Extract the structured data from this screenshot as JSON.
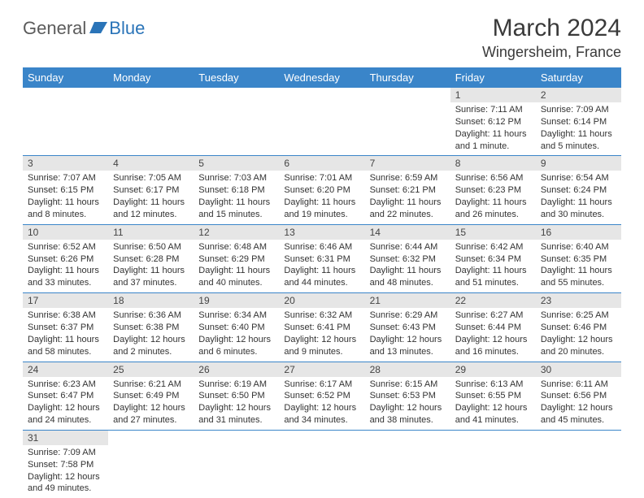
{
  "brand": {
    "text1": "General",
    "text2": "Blue"
  },
  "title": "March 2024",
  "location": "Wingersheim, France",
  "colors": {
    "header_bg": "#3a85c9",
    "header_fg": "#ffffff",
    "daynum_bg": "#e6e6e6",
    "row_divider": "#3a85c9",
    "brand_gray": "#5b5b5b",
    "brand_blue": "#2a74b8"
  },
  "fonts": {
    "title_size": 30,
    "location_size": 18,
    "dayheader_size": 13,
    "daynum_size": 12,
    "body_size": 11
  },
  "day_headers": [
    "Sunday",
    "Monday",
    "Tuesday",
    "Wednesday",
    "Thursday",
    "Friday",
    "Saturday"
  ],
  "weeks": [
    [
      {
        "n": "",
        "sunrise": "",
        "sunset": "",
        "daylight": ""
      },
      {
        "n": "",
        "sunrise": "",
        "sunset": "",
        "daylight": ""
      },
      {
        "n": "",
        "sunrise": "",
        "sunset": "",
        "daylight": ""
      },
      {
        "n": "",
        "sunrise": "",
        "sunset": "",
        "daylight": ""
      },
      {
        "n": "",
        "sunrise": "",
        "sunset": "",
        "daylight": ""
      },
      {
        "n": "1",
        "sunrise": "Sunrise: 7:11 AM",
        "sunset": "Sunset: 6:12 PM",
        "daylight": "Daylight: 11 hours and 1 minute."
      },
      {
        "n": "2",
        "sunrise": "Sunrise: 7:09 AM",
        "sunset": "Sunset: 6:14 PM",
        "daylight": "Daylight: 11 hours and 5 minutes."
      }
    ],
    [
      {
        "n": "3",
        "sunrise": "Sunrise: 7:07 AM",
        "sunset": "Sunset: 6:15 PM",
        "daylight": "Daylight: 11 hours and 8 minutes."
      },
      {
        "n": "4",
        "sunrise": "Sunrise: 7:05 AM",
        "sunset": "Sunset: 6:17 PM",
        "daylight": "Daylight: 11 hours and 12 minutes."
      },
      {
        "n": "5",
        "sunrise": "Sunrise: 7:03 AM",
        "sunset": "Sunset: 6:18 PM",
        "daylight": "Daylight: 11 hours and 15 minutes."
      },
      {
        "n": "6",
        "sunrise": "Sunrise: 7:01 AM",
        "sunset": "Sunset: 6:20 PM",
        "daylight": "Daylight: 11 hours and 19 minutes."
      },
      {
        "n": "7",
        "sunrise": "Sunrise: 6:59 AM",
        "sunset": "Sunset: 6:21 PM",
        "daylight": "Daylight: 11 hours and 22 minutes."
      },
      {
        "n": "8",
        "sunrise": "Sunrise: 6:56 AM",
        "sunset": "Sunset: 6:23 PM",
        "daylight": "Daylight: 11 hours and 26 minutes."
      },
      {
        "n": "9",
        "sunrise": "Sunrise: 6:54 AM",
        "sunset": "Sunset: 6:24 PM",
        "daylight": "Daylight: 11 hours and 30 minutes."
      }
    ],
    [
      {
        "n": "10",
        "sunrise": "Sunrise: 6:52 AM",
        "sunset": "Sunset: 6:26 PM",
        "daylight": "Daylight: 11 hours and 33 minutes."
      },
      {
        "n": "11",
        "sunrise": "Sunrise: 6:50 AM",
        "sunset": "Sunset: 6:28 PM",
        "daylight": "Daylight: 11 hours and 37 minutes."
      },
      {
        "n": "12",
        "sunrise": "Sunrise: 6:48 AM",
        "sunset": "Sunset: 6:29 PM",
        "daylight": "Daylight: 11 hours and 40 minutes."
      },
      {
        "n": "13",
        "sunrise": "Sunrise: 6:46 AM",
        "sunset": "Sunset: 6:31 PM",
        "daylight": "Daylight: 11 hours and 44 minutes."
      },
      {
        "n": "14",
        "sunrise": "Sunrise: 6:44 AM",
        "sunset": "Sunset: 6:32 PM",
        "daylight": "Daylight: 11 hours and 48 minutes."
      },
      {
        "n": "15",
        "sunrise": "Sunrise: 6:42 AM",
        "sunset": "Sunset: 6:34 PM",
        "daylight": "Daylight: 11 hours and 51 minutes."
      },
      {
        "n": "16",
        "sunrise": "Sunrise: 6:40 AM",
        "sunset": "Sunset: 6:35 PM",
        "daylight": "Daylight: 11 hours and 55 minutes."
      }
    ],
    [
      {
        "n": "17",
        "sunrise": "Sunrise: 6:38 AM",
        "sunset": "Sunset: 6:37 PM",
        "daylight": "Daylight: 11 hours and 58 minutes."
      },
      {
        "n": "18",
        "sunrise": "Sunrise: 6:36 AM",
        "sunset": "Sunset: 6:38 PM",
        "daylight": "Daylight: 12 hours and 2 minutes."
      },
      {
        "n": "19",
        "sunrise": "Sunrise: 6:34 AM",
        "sunset": "Sunset: 6:40 PM",
        "daylight": "Daylight: 12 hours and 6 minutes."
      },
      {
        "n": "20",
        "sunrise": "Sunrise: 6:32 AM",
        "sunset": "Sunset: 6:41 PM",
        "daylight": "Daylight: 12 hours and 9 minutes."
      },
      {
        "n": "21",
        "sunrise": "Sunrise: 6:29 AM",
        "sunset": "Sunset: 6:43 PM",
        "daylight": "Daylight: 12 hours and 13 minutes."
      },
      {
        "n": "22",
        "sunrise": "Sunrise: 6:27 AM",
        "sunset": "Sunset: 6:44 PM",
        "daylight": "Daylight: 12 hours and 16 minutes."
      },
      {
        "n": "23",
        "sunrise": "Sunrise: 6:25 AM",
        "sunset": "Sunset: 6:46 PM",
        "daylight": "Daylight: 12 hours and 20 minutes."
      }
    ],
    [
      {
        "n": "24",
        "sunrise": "Sunrise: 6:23 AM",
        "sunset": "Sunset: 6:47 PM",
        "daylight": "Daylight: 12 hours and 24 minutes."
      },
      {
        "n": "25",
        "sunrise": "Sunrise: 6:21 AM",
        "sunset": "Sunset: 6:49 PM",
        "daylight": "Daylight: 12 hours and 27 minutes."
      },
      {
        "n": "26",
        "sunrise": "Sunrise: 6:19 AM",
        "sunset": "Sunset: 6:50 PM",
        "daylight": "Daylight: 12 hours and 31 minutes."
      },
      {
        "n": "27",
        "sunrise": "Sunrise: 6:17 AM",
        "sunset": "Sunset: 6:52 PM",
        "daylight": "Daylight: 12 hours and 34 minutes."
      },
      {
        "n": "28",
        "sunrise": "Sunrise: 6:15 AM",
        "sunset": "Sunset: 6:53 PM",
        "daylight": "Daylight: 12 hours and 38 minutes."
      },
      {
        "n": "29",
        "sunrise": "Sunrise: 6:13 AM",
        "sunset": "Sunset: 6:55 PM",
        "daylight": "Daylight: 12 hours and 41 minutes."
      },
      {
        "n": "30",
        "sunrise": "Sunrise: 6:11 AM",
        "sunset": "Sunset: 6:56 PM",
        "daylight": "Daylight: 12 hours and 45 minutes."
      }
    ],
    [
      {
        "n": "31",
        "sunrise": "Sunrise: 7:09 AM",
        "sunset": "Sunset: 7:58 PM",
        "daylight": "Daylight: 12 hours and 49 minutes."
      },
      {
        "n": "",
        "sunrise": "",
        "sunset": "",
        "daylight": ""
      },
      {
        "n": "",
        "sunrise": "",
        "sunset": "",
        "daylight": ""
      },
      {
        "n": "",
        "sunrise": "",
        "sunset": "",
        "daylight": ""
      },
      {
        "n": "",
        "sunrise": "",
        "sunset": "",
        "daylight": ""
      },
      {
        "n": "",
        "sunrise": "",
        "sunset": "",
        "daylight": ""
      },
      {
        "n": "",
        "sunrise": "",
        "sunset": "",
        "daylight": ""
      }
    ]
  ]
}
